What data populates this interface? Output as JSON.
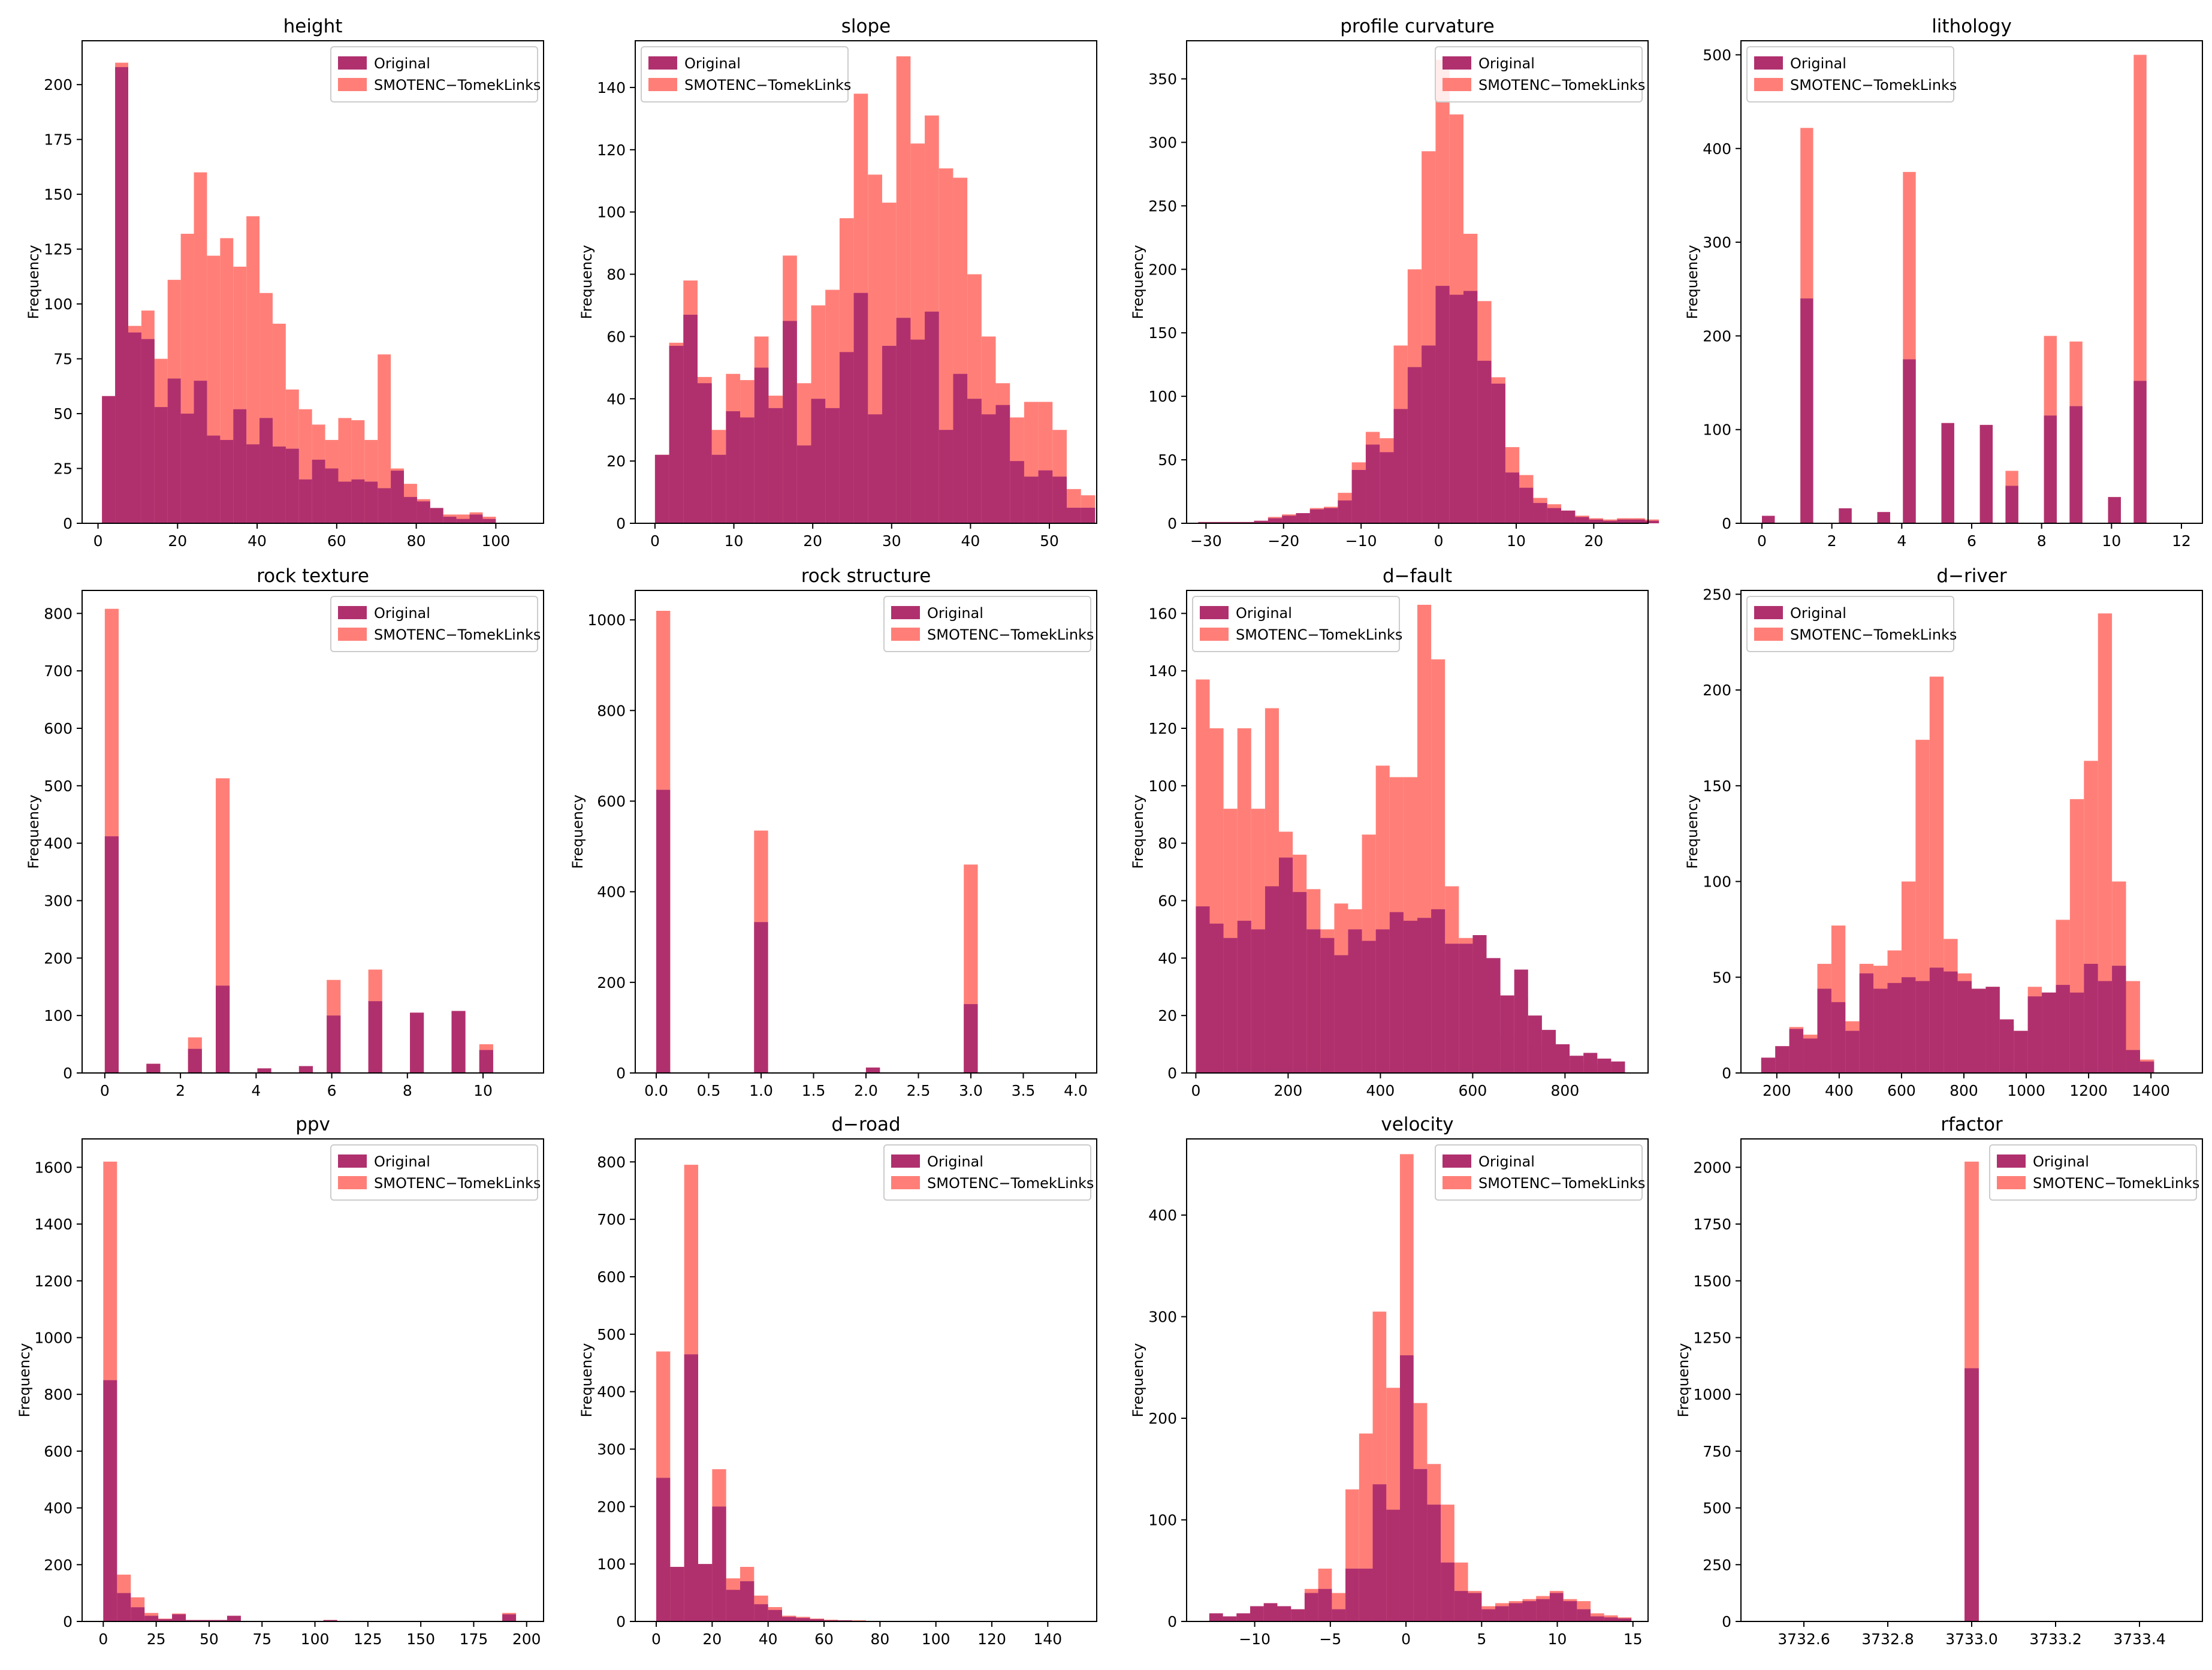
{
  "colors": {
    "original": "#b0306e",
    "smote": "#ff7f78"
  },
  "legend": {
    "original": "Original",
    "smote": "SMOTENC−TomekLinks"
  },
  "ylabel": "Frequency",
  "chart_data": [
    {
      "type": "bar",
      "title": "height",
      "xlim": [
        -4,
        112
      ],
      "ylim": [
        0,
        220
      ],
      "xticks": [
        0,
        20,
        40,
        60,
        80,
        100
      ],
      "yticks": [
        0,
        25,
        50,
        75,
        100,
        125,
        150,
        175,
        200
      ],
      "ytick_labels": null,
      "legend_pos": "top-right",
      "x_start": 1,
      "bin_width": 3.3,
      "series": [
        {
          "name": "SMOTENC−TomekLinks",
          "values": [
            58,
            210,
            90,
            97,
            75,
            111,
            132,
            160,
            122,
            130,
            117,
            140,
            105,
            91,
            61,
            52,
            45,
            38,
            48,
            47,
            38,
            77,
            25,
            18,
            11,
            3,
            4,
            4,
            5,
            3
          ]
        },
        {
          "name": "Original",
          "values": [
            58,
            208,
            87,
            84,
            53,
            66,
            50,
            65,
            40,
            38,
            52,
            36,
            48,
            35,
            34,
            20,
            29,
            25,
            19,
            20,
            19,
            16,
            24,
            12,
            10,
            7,
            3,
            2,
            4,
            2
          ]
        }
      ]
    },
    {
      "type": "bar",
      "title": "slope",
      "xlim": [
        -2.5,
        56
      ],
      "ylim": [
        0,
        155
      ],
      "xticks": [
        0,
        10,
        20,
        30,
        40,
        50
      ],
      "yticks": [
        0,
        20,
        40,
        60,
        80,
        100,
        120,
        140
      ],
      "ytick_labels": null,
      "legend_pos": "top-left",
      "x_start": 0,
      "bin_width": 1.8,
      "series": [
        {
          "name": "SMOTENC−TomekLinks",
          "values": [
            22,
            58,
            78,
            47,
            30,
            48,
            46,
            60,
            41,
            86,
            45,
            70,
            75,
            98,
            138,
            112,
            103,
            150,
            122,
            131,
            114,
            111,
            80,
            60,
            45,
            34,
            39,
            39,
            30,
            11,
            9
          ]
        },
        {
          "name": "Original",
          "values": [
            22,
            57,
            67,
            45,
            22,
            36,
            34,
            50,
            37,
            65,
            25,
            40,
            37,
            55,
            74,
            35,
            57,
            66,
            59,
            68,
            30,
            48,
            40,
            35,
            38,
            20,
            15,
            17,
            15,
            5,
            5
          ]
        }
      ]
    },
    {
      "type": "bar",
      "title": "profile curvature",
      "xlim": [
        -32.5,
        27
      ],
      "ylim": [
        0,
        380
      ],
      "xticks": [
        -30,
        -20,
        -10,
        0,
        10,
        20
      ],
      "yticks": [
        0,
        50,
        100,
        150,
        200,
        250,
        300,
        350
      ],
      "ytick_labels": null,
      "legend_pos": "top-right",
      "x_start": -31,
      "bin_width": 1.8,
      "series": [
        {
          "name": "SMOTENC−TomekLinks",
          "values": [
            1,
            1,
            1,
            1,
            2,
            5,
            7,
            8,
            12,
            13,
            24,
            48,
            72,
            67,
            140,
            200,
            293,
            365,
            322,
            228,
            175,
            115,
            60,
            38,
            20,
            15,
            10,
            6,
            4,
            3,
            4,
            4,
            3
          ]
        },
        {
          "name": "Original",
          "values": [
            1,
            1,
            1,
            1,
            2,
            4,
            6,
            8,
            11,
            12,
            18,
            42,
            62,
            56,
            90,
            123,
            140,
            187,
            180,
            183,
            128,
            110,
            40,
            28,
            16,
            12,
            10,
            5,
            3,
            2,
            3,
            3,
            2
          ]
        }
      ]
    },
    {
      "type": "bar",
      "title": "lithology",
      "xlim": [
        -0.6,
        12.6
      ],
      "ylim": [
        0,
        515
      ],
      "xticks": [
        0,
        2,
        4,
        6,
        8,
        10,
        12
      ],
      "yticks": [
        0,
        100,
        200,
        300,
        400,
        500
      ],
      "ytick_labels": null,
      "legend_pos": "top-left",
      "x_start": 0,
      "bin_width": 0.3667,
      "series": [
        {
          "name": "SMOTENC−TomekLinks",
          "values": [
            8,
            0,
            0,
            422,
            0,
            0,
            16,
            0,
            0,
            12,
            0,
            375,
            0,
            0,
            107,
            0,
            0,
            105,
            0,
            56,
            0,
            0,
            200,
            0,
            194,
            0,
            0,
            28,
            0,
            500
          ]
        },
        {
          "name": "Original",
          "values": [
            8,
            0,
            0,
            240,
            0,
            0,
            16,
            0,
            0,
            12,
            0,
            175,
            0,
            0,
            107,
            0,
            0,
            105,
            0,
            40,
            0,
            0,
            115,
            0,
            125,
            0,
            0,
            28,
            0,
            152
          ]
        }
      ]
    },
    {
      "type": "bar",
      "title": "rock texture",
      "xlim": [
        -0.6,
        11.6
      ],
      "ylim": [
        0,
        840
      ],
      "xticks": [
        0,
        2,
        4,
        6,
        8,
        10
      ],
      "yticks": [
        0,
        100,
        200,
        300,
        400,
        500,
        600,
        700,
        800
      ],
      "ytick_labels": null,
      "legend_pos": "top-right",
      "x_start": 0,
      "bin_width": 0.3667,
      "series": [
        {
          "name": "SMOTENC−TomekLinks",
          "values": [
            808,
            0,
            0,
            16,
            0,
            0,
            62,
            0,
            513,
            0,
            0,
            8,
            0,
            0,
            12,
            0,
            162,
            0,
            0,
            180,
            0,
            0,
            105,
            0,
            0,
            108,
            0,
            50,
            0,
            0
          ]
        },
        {
          "name": "Original",
          "values": [
            412,
            0,
            0,
            16,
            0,
            0,
            42,
            0,
            152,
            0,
            0,
            8,
            0,
            0,
            12,
            0,
            100,
            0,
            0,
            125,
            0,
            0,
            105,
            0,
            0,
            108,
            0,
            40,
            0,
            0
          ]
        }
      ]
    },
    {
      "type": "bar",
      "title": "rock structure",
      "xlim": [
        -0.2,
        4.2
      ],
      "ylim": [
        0,
        1065
      ],
      "xticks": [
        0.0,
        0.5,
        1.0,
        1.5,
        2.0,
        2.5,
        3.0,
        3.5,
        4.0
      ],
      "yticks": [
        0,
        200,
        400,
        600,
        800,
        1000
      ],
      "ytick_labels": null,
      "legend_pos": "top-right",
      "x_start": 0,
      "bin_width": 0.1333,
      "series": [
        {
          "name": "SMOTENC−TomekLinks",
          "values": [
            1020,
            0,
            0,
            0,
            0,
            0,
            0,
            535,
            0,
            0,
            0,
            0,
            0,
            0,
            0,
            12,
            0,
            0,
            0,
            0,
            0,
            0,
            460,
            0,
            0,
            0,
            0,
            0,
            0,
            0
          ]
        },
        {
          "name": "Original",
          "values": [
            625,
            0,
            0,
            0,
            0,
            0,
            0,
            333,
            0,
            0,
            0,
            0,
            0,
            0,
            0,
            12,
            0,
            0,
            0,
            0,
            0,
            0,
            152,
            0,
            0,
            0,
            0,
            0,
            0,
            0
          ]
        }
      ]
    },
    {
      "type": "bar",
      "title": "d−fault",
      "xlim": [
        -20,
        980
      ],
      "ylim": [
        0,
        168
      ],
      "xticks": [
        0,
        200,
        400,
        600,
        800
      ],
      "yticks": [
        0,
        20,
        40,
        60,
        80,
        100,
        120,
        140,
        160
      ],
      "ytick_labels": null,
      "legend_pos": "top-left",
      "x_start": 0,
      "bin_width": 30,
      "series": [
        {
          "name": "SMOTENC−TomekLinks",
          "values": [
            137,
            120,
            92,
            120,
            92,
            127,
            84,
            76,
            64,
            50,
            59,
            57,
            83,
            107,
            103,
            103,
            163,
            144,
            65,
            47,
            38,
            28,
            13,
            26,
            10,
            8,
            6,
            4,
            3,
            3,
            3
          ]
        },
        {
          "name": "Original",
          "values": [
            58,
            52,
            47,
            53,
            50,
            65,
            75,
            63,
            50,
            47,
            41,
            50,
            46,
            50,
            56,
            53,
            54,
            57,
            45,
            45,
            48,
            40,
            27,
            36,
            20,
            15,
            10,
            6,
            7,
            5,
            4
          ]
        }
      ]
    },
    {
      "type": "bar",
      "title": "d−river",
      "xlim": [
        85,
        1565
      ],
      "ylim": [
        0,
        252
      ],
      "xticks": [
        200,
        400,
        600,
        800,
        1000,
        1200,
        1400
      ],
      "yticks": [
        0,
        50,
        100,
        150,
        200,
        250
      ],
      "ytick_labels": null,
      "legend_pos": "top-left",
      "x_start": 150,
      "bin_width": 45,
      "series": [
        {
          "name": "SMOTENC−TomekLinks",
          "values": [
            8,
            14,
            24,
            20,
            57,
            77,
            27,
            57,
            56,
            64,
            100,
            174,
            207,
            70,
            52,
            44,
            45,
            25,
            22,
            45,
            42,
            80,
            143,
            163,
            240,
            100,
            48,
            7
          ]
        },
        {
          "name": "Original",
          "values": [
            8,
            14,
            23,
            18,
            44,
            37,
            22,
            52,
            44,
            47,
            50,
            48,
            55,
            53,
            48,
            44,
            45,
            28,
            22,
            40,
            42,
            46,
            42,
            57,
            48,
            56,
            12,
            6
          ]
        }
      ]
    },
    {
      "type": "bar",
      "title": "ppv",
      "xlim": [
        -10,
        208
      ],
      "ylim": [
        0,
        1700
      ],
      "xticks": [
        0,
        25,
        50,
        75,
        100,
        125,
        150,
        175,
        200
      ],
      "yticks": [
        0,
        200,
        400,
        600,
        800,
        1000,
        1200,
        1400,
        1600
      ],
      "ytick_labels": null,
      "legend_pos": "top-right",
      "x_start": 0,
      "bin_width": 6.5,
      "series": [
        {
          "name": "SMOTENC−TomekLinks",
          "values": [
            1620,
            165,
            85,
            30,
            10,
            28,
            5,
            5,
            5,
            20,
            0,
            0,
            0,
            0,
            0,
            0,
            5,
            0,
            0,
            0,
            0,
            0,
            0,
            0,
            0,
            0,
            0,
            0,
            0,
            30
          ]
        },
        {
          "name": "Original",
          "values": [
            850,
            100,
            50,
            20,
            8,
            25,
            5,
            5,
            5,
            20,
            0,
            0,
            0,
            0,
            0,
            0,
            5,
            0,
            0,
            0,
            0,
            0,
            0,
            0,
            0,
            0,
            0,
            0,
            0,
            25
          ]
        }
      ]
    },
    {
      "type": "bar",
      "title": "d−road",
      "xlim": [
        -7.5,
        157.5
      ],
      "ylim": [
        0,
        840
      ],
      "xticks": [
        0,
        20,
        40,
        60,
        80,
        100,
        120,
        140
      ],
      "yticks": [
        0,
        100,
        200,
        300,
        400,
        500,
        600,
        700,
        800
      ],
      "ytick_labels": null,
      "legend_pos": "top-right",
      "x_start": 0,
      "bin_width": 5,
      "series": [
        {
          "name": "SMOTENC−TomekLinks",
          "values": [
            470,
            95,
            795,
            100,
            265,
            75,
            95,
            45,
            25,
            10,
            8,
            5,
            3,
            2,
            2,
            1,
            1,
            1,
            1,
            1,
            1,
            1,
            1,
            1,
            1,
            1,
            1,
            1,
            1,
            1
          ]
        },
        {
          "name": "Original",
          "values": [
            250,
            95,
            465,
            100,
            200,
            55,
            70,
            30,
            20,
            8,
            6,
            4,
            2,
            2,
            1,
            1,
            1,
            1,
            1,
            1,
            1,
            1,
            1,
            1,
            1,
            1,
            1,
            1,
            1,
            1
          ]
        }
      ]
    },
    {
      "type": "bar",
      "title": "velocity",
      "xlim": [
        -14.5,
        16
      ],
      "ylim": [
        0,
        475
      ],
      "xticks": [
        -10,
        -5,
        0,
        5,
        10,
        15
      ],
      "yticks": [
        0,
        100,
        200,
        300,
        400
      ],
      "ytick_labels": null,
      "legend_pos": "top-right",
      "x_start": -13,
      "bin_width": 0.9,
      "series": [
        {
          "name": "SMOTENC−TomekLinks",
          "values": [
            8,
            5,
            8,
            15,
            18,
            15,
            12,
            32,
            52,
            28,
            130,
            185,
            305,
            230,
            460,
            215,
            155,
            115,
            58,
            30,
            15,
            18,
            20,
            22,
            25,
            30,
            22,
            20,
            8,
            6,
            4
          ]
        },
        {
          "name": "Original",
          "values": [
            8,
            5,
            8,
            15,
            18,
            15,
            12,
            28,
            32,
            12,
            52,
            52,
            135,
            110,
            262,
            150,
            115,
            58,
            30,
            28,
            12,
            15,
            18,
            20,
            22,
            28,
            20,
            12,
            5,
            4,
            3
          ]
        }
      ]
    },
    {
      "type": "bar",
      "title": "rfactor",
      "xlim": [
        3732.45,
        3733.55
      ],
      "ylim": [
        0,
        2125
      ],
      "xticks": [
        3732.6,
        3732.8,
        3733.0,
        3733.2,
        3733.4
      ],
      "yticks": [
        0,
        250,
        500,
        750,
        1000,
        1250,
        1500,
        1750,
        2000
      ],
      "ytick_labels": null,
      "legend_pos": "top-right",
      "x_start": 3732.983,
      "bin_width": 0.034,
      "series": [
        {
          "name": "SMOTENC−TomekLinks",
          "values": [
            2025
          ]
        },
        {
          "name": "Original",
          "values": [
            1115
          ]
        }
      ]
    }
  ]
}
